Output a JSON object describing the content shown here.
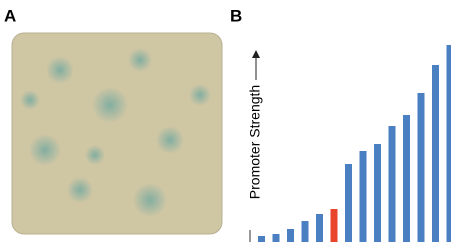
{
  "panels": {
    "a": {
      "label": "A"
    },
    "b": {
      "label": "B"
    }
  },
  "chart_data": {
    "type": "bar",
    "y_label": "Promoter Strength",
    "categories": [
      null,
      null,
      null,
      null,
      null,
      null,
      null,
      null,
      null,
      null,
      null,
      null,
      null,
      null
    ],
    "values": [
      6,
      8,
      13,
      21,
      28,
      33,
      78,
      91,
      98,
      116,
      127,
      149,
      177,
      197
    ],
    "colors": [
      "#4a7fc1",
      "#4a7fc1",
      "#4a7fc1",
      "#4a7fc1",
      "#4a7fc1",
      "#e8452c",
      "#4a7fc1",
      "#4a7fc1",
      "#4a7fc1",
      "#4a7fc1",
      "#4a7fc1",
      "#4a7fc1",
      "#4a7fc1",
      "#4a7fc1"
    ],
    "ylim": [
      0,
      200
    ]
  }
}
